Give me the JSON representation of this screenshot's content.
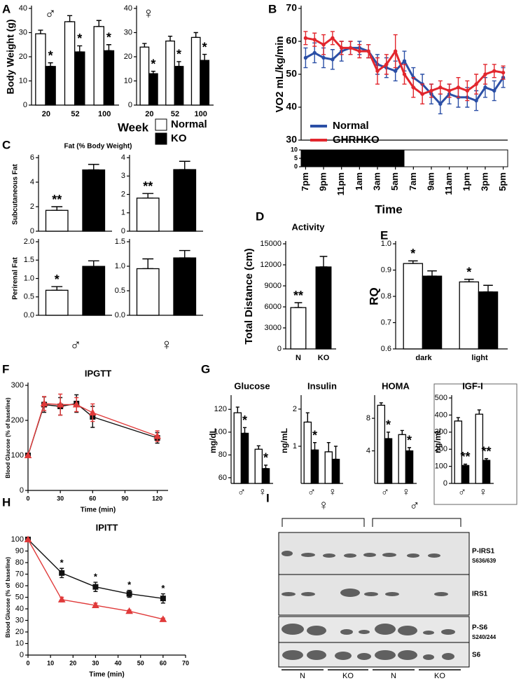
{
  "chart_data": [
    {
      "type": "bar",
      "panel_label": "A",
      "symbol": "♂",
      "ylabel": "Body Weight (g)",
      "xlabel": "Week",
      "categories": [
        "20",
        "52",
        "100"
      ],
      "ylim": [
        0,
        40
      ],
      "yticks": [
        0,
        10,
        20,
        30,
        40
      ],
      "series": [
        {
          "name": "Normal",
          "color": "#ffffff",
          "values": [
            29.5,
            34.5,
            32.5
          ],
          "errors": [
            1.5,
            2.5,
            2.5
          ]
        },
        {
          "name": "KO",
          "color": "#000000",
          "values": [
            16,
            22,
            22.5
          ],
          "errors": [
            1.5,
            2.5,
            2.5
          ],
          "significance": [
            "*",
            "*",
            "*"
          ]
        }
      ]
    },
    {
      "type": "bar",
      "symbol": "♀",
      "categories": [
        "20",
        "52",
        "100"
      ],
      "ylim": [
        0,
        40
      ],
      "yticks": [
        0,
        10,
        20,
        30,
        40
      ],
      "series": [
        {
          "color": "#ffffff",
          "values": [
            24,
            26.5,
            28
          ],
          "errors": [
            1.5,
            2,
            2
          ]
        },
        {
          "color": "#000000",
          "values": [
            13,
            16,
            18.5
          ],
          "errors": [
            1,
            2,
            2.5
          ],
          "significance": [
            "*",
            "*",
            "*"
          ]
        }
      ]
    },
    {
      "type": "line",
      "panel_label": "B",
      "ylabel": "VO2 mL/kg/min",
      "xlabel": "Time",
      "categories": [
        "7pm",
        null,
        "9pm",
        null,
        "11pm",
        null,
        "1am",
        null,
        "3am",
        null,
        "5am",
        null,
        "7am",
        null,
        "9am",
        null,
        "11am",
        null,
        "1pm",
        null,
        "3pm",
        null,
        "5pm"
      ],
      "ylim": [
        30,
        70
      ],
      "yticks": [
        30,
        40,
        50,
        60,
        70
      ],
      "photoperiod": {
        "ylim": [
          0,
          10
        ],
        "yticks": [
          0,
          5,
          10
        ],
        "dark": [
          0,
          11
        ]
      },
      "series": [
        {
          "name": "Normal",
          "color": "#2b4fa6",
          "marker": "circle",
          "values": [
            55,
            56.5,
            55,
            54.5,
            57,
            58,
            58,
            57,
            53,
            52,
            51,
            54,
            49,
            47,
            44,
            41,
            44,
            43,
            43,
            42,
            46,
            45,
            49
          ],
          "errors": [
            3,
            3,
            3,
            3,
            3,
            2,
            2,
            2,
            3,
            3,
            3,
            3,
            3,
            3,
            3,
            3,
            3,
            3,
            3,
            3,
            3,
            3,
            3
          ]
        },
        {
          "name": "GHRHKO",
          "color": "#e2262d",
          "marker": "circle",
          "values": [
            61,
            60.5,
            59,
            61,
            58,
            58,
            57,
            57,
            51,
            53,
            57,
            50,
            46,
            44,
            45,
            46,
            45,
            46,
            45,
            47,
            50,
            51,
            50.5
          ],
          "errors": [
            2,
            2,
            3,
            2,
            2,
            2,
            2,
            2,
            4,
            3,
            5,
            3,
            3,
            3,
            2,
            2,
            2,
            3,
            3,
            3,
            3,
            2,
            2
          ]
        }
      ]
    },
    {
      "type": "bar",
      "panel_label": "C",
      "title": "Fat (% Body Weight)",
      "ylabel": "Subcutaneous Fat",
      "ylim": [
        0,
        6
      ],
      "yticks": [
        0,
        2,
        4,
        6
      ],
      "series": [
        {
          "colors": [
            "#ffffff",
            "#000000"
          ],
          "values": [
            1.7,
            5.0
          ],
          "errors": [
            0.3,
            0.45
          ],
          "significance": [
            "**",
            null
          ]
        }
      ]
    },
    {
      "type": "bar",
      "ylim": [
        0,
        4
      ],
      "yticks": [
        0,
        1,
        2,
        3,
        4
      ],
      "series": [
        {
          "colors": [
            "#ffffff",
            "#000000"
          ],
          "values": [
            1.8,
            3.35
          ],
          "errors": [
            0.25,
            0.45
          ],
          "significance": [
            "**",
            null
          ]
        }
      ]
    },
    {
      "type": "bar",
      "ylabel": "Perirenal Fat",
      "symbol": "♂",
      "ylim": [
        0,
        2
      ],
      "yticks": [
        {
          "value": 0,
          "label": "0.0"
        },
        0.5,
        {
          "value": 1,
          "label": "1.0"
        },
        1.5,
        {
          "value": 2,
          "label": "2.0"
        }
      ],
      "series": [
        {
          "colors": [
            "#ffffff",
            "#000000"
          ],
          "values": [
            0.68,
            1.33
          ],
          "errors": [
            0.1,
            0.15
          ],
          "significance": [
            "*",
            null
          ]
        }
      ]
    },
    {
      "type": "bar",
      "symbol": "♀",
      "ylim": [
        0,
        1.5
      ],
      "yticks": [
        {
          "value": 0,
          "label": "0.0"
        },
        0.5,
        {
          "value": 1,
          "label": "1.0"
        },
        1.5
      ],
      "series": [
        {
          "colors": [
            "#ffffff",
            "#000000"
          ],
          "values": [
            0.95,
            1.17
          ],
          "errors": [
            0.2,
            0.15
          ]
        }
      ]
    },
    {
      "type": "bar",
      "panel_label": "D",
      "title": "Activity",
      "ylabel": "Total Distance (cm)",
      "categories": [
        "N",
        "KO"
      ],
      "ylim": [
        0,
        15000
      ],
      "yticks": [
        0,
        3000,
        6000,
        9000,
        12000,
        15000
      ],
      "series": [
        {
          "colors": [
            "#ffffff",
            "#000000"
          ],
          "values": [
            5900,
            11700
          ],
          "errors": [
            700,
            1500
          ],
          "significance": [
            "**",
            null
          ]
        }
      ]
    },
    {
      "type": "bar",
      "panel_label": "E",
      "ylabel": "RQ",
      "categories": [
        "dark",
        "light"
      ],
      "ylim": [
        0.6,
        1.0
      ],
      "yticks": [
        0.6,
        0.7,
        0.8,
        0.9,
        {
          "value": 1.0,
          "label": "1.0"
        }
      ],
      "series": [
        {
          "color": "#ffffff",
          "values": [
            0.925,
            0.855
          ],
          "errors": [
            0.01,
            0.01
          ],
          "significance": [
            "*",
            "*"
          ]
        },
        {
          "color": "#000000",
          "values": [
            0.877,
            0.817
          ],
          "errors": [
            0.02,
            0.025
          ]
        }
      ]
    },
    {
      "type": "line",
      "panel_label": "F",
      "title": "IPGTT",
      "ylabel": "Blood  Glucose (% of baseline)",
      "xlabel": "Time (min)",
      "x": [
        0,
        15,
        30,
        45,
        60,
        120
      ],
      "xlim": [
        0,
        130
      ],
      "xticks": [
        0,
        30,
        60,
        90,
        120
      ],
      "ylim": [
        0,
        300
      ],
      "yticks": [
        0,
        100,
        200,
        300
      ],
      "series": [
        {
          "color": "#111111",
          "marker": "square",
          "values": [
            100,
            245,
            240,
            248,
            210,
            150
          ],
          "errors": [
            0,
            22,
            25,
            25,
            30,
            15
          ]
        },
        {
          "color": "#e03a3a",
          "marker": "triangle",
          "values": [
            100,
            248,
            245,
            245,
            222,
            155
          ],
          "errors": [
            0,
            20,
            30,
            20,
            25,
            15
          ]
        }
      ]
    },
    {
      "type": "bar",
      "panel_label": "G",
      "title": "Glucose",
      "ylabel": "mg/dL",
      "categories": [
        "♂",
        "♀"
      ],
      "ylim": [
        55,
        130
      ],
      "yticks": [
        60,
        80,
        100,
        120
      ],
      "series": [
        {
          "color": "#ffffff",
          "values": [
            117,
            85
          ],
          "errors": [
            5,
            3
          ]
        },
        {
          "color": "#000000",
          "values": [
            99,
            68
          ],
          "errors": [
            5,
            3
          ],
          "significance": [
            "*",
            "*"
          ]
        }
      ]
    },
    {
      "type": "bar",
      "title": "Insulin",
      "ylabel": "ng/mL",
      "categories": [
        "♂",
        "♀"
      ],
      "ylim": [
        0,
        2.3
      ],
      "yticks": [
        1,
        2
      ],
      "series": [
        {
          "color": "#ffffff",
          "values": [
            1.65,
            0.85
          ],
          "errors": [
            0.25,
            0.25
          ]
        },
        {
          "color": "#000000",
          "values": [
            0.9,
            0.65
          ],
          "errors": [
            0.2,
            0.35
          ],
          "significance": [
            "*",
            null
          ]
        }
      ]
    },
    {
      "type": "bar",
      "title": "HOMA",
      "categories": [
        "♂",
        "♀"
      ],
      "ylim": [
        0,
        10.5
      ],
      "yticks": [
        4,
        8
      ],
      "series": [
        {
          "color": "#ffffff",
          "values": [
            9.6,
            6.0
          ],
          "errors": [
            0.3,
            0.5
          ]
        },
        {
          "color": "#000000",
          "values": [
            5.5,
            4.0
          ],
          "errors": [
            0.8,
            0.4
          ],
          "significance": [
            "*",
            "*"
          ]
        }
      ]
    },
    {
      "type": "bar",
      "title": "IGF-I",
      "ylabel": "ng/mL",
      "categories": [
        "♂",
        "♀"
      ],
      "ylim": [
        0,
        500
      ],
      "yticks": [
        0,
        100,
        200,
        300,
        400,
        500
      ],
      "series": [
        {
          "color": "#ffffff",
          "values": [
            365,
            405
          ],
          "errors": [
            20,
            25
          ]
        },
        {
          "color": "#000000",
          "values": [
            105,
            135
          ],
          "errors": [
            8,
            10
          ],
          "significance": [
            "**",
            "**"
          ]
        }
      ]
    },
    {
      "type": "line",
      "panel_label": "H",
      "title": "IPITT",
      "ylabel": "Blood  Glucose (% of baseline)",
      "xlabel": "Time (min)",
      "x": [
        0,
        15,
        30,
        45,
        60
      ],
      "xlim": [
        0,
        70
      ],
      "xticks": [
        0,
        10,
        20,
        30,
        40,
        50,
        60,
        70
      ],
      "ylim": [
        0,
        100
      ],
      "yticks": [
        0,
        10,
        20,
        30,
        40,
        50,
        60,
        70,
        80,
        90,
        100
      ],
      "series": [
        {
          "color": "#111111",
          "marker": "square",
          "values": [
            100,
            71,
            59,
            53,
            49
          ],
          "errors": [
            0,
            4,
            4,
            3,
            4
          ],
          "significance": [
            null,
            "*",
            "*",
            "*",
            "*"
          ]
        },
        {
          "color": "#e03a3a",
          "marker": "triangle",
          "values": [
            100,
            48,
            43,
            38,
            31
          ],
          "errors": [
            0,
            2,
            2,
            1,
            1
          ]
        }
      ]
    }
  ],
  "blot": {
    "panel_label": "I",
    "groups": [
      "♀",
      "♂"
    ],
    "bands": [
      {
        "label": "P-IRS1",
        "site": "S636/639"
      },
      {
        "label": "IRS1"
      },
      {
        "label": "P-S6",
        "site": "S240/244"
      },
      {
        "label": "S6"
      }
    ],
    "lanes": [
      "N",
      "KO",
      "N",
      "KO"
    ]
  }
}
